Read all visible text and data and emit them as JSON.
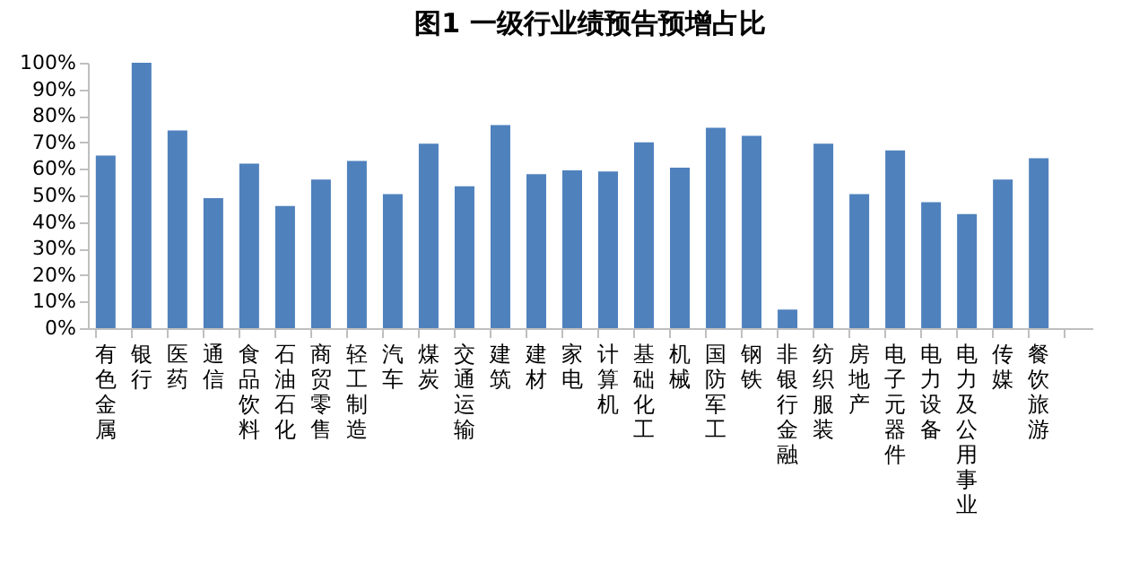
{
  "chart_data": {
    "type": "bar",
    "title": "图1 一级行业绩预告预增占比",
    "categories": [
      "有色金属",
      "银行",
      "医药",
      "通信",
      "食品饮料",
      "石油石化",
      "商贸零售",
      "轻工制造",
      "汽车",
      "煤炭",
      "交通运输",
      "建筑",
      "建材",
      "家电",
      "计算机",
      "基础化工",
      "机械",
      "国防军工",
      "钢铁",
      "非银行金融",
      "纺织服装",
      "房地产",
      "电子元器件",
      "电力设备",
      "电力及公用事业",
      "传媒",
      "餐饮旅游",
      null
    ],
    "values": [
      65,
      100,
      74.5,
      49,
      62,
      46,
      56,
      63,
      50.5,
      69.5,
      53.5,
      76.5,
      58,
      59.5,
      59,
      70,
      60.5,
      75.5,
      72.5,
      7,
      69.5,
      50.5,
      67,
      47.5,
      43,
      56,
      64,
      null
    ],
    "color": "#4f81bd",
    "ylim": [
      0,
      100
    ],
    "yticks": [
      {
        "value": 0,
        "label": "0%"
      },
      {
        "value": 10,
        "label": "10%"
      },
      {
        "value": 20,
        "label": "20%"
      },
      {
        "value": 30,
        "label": "30%"
      },
      {
        "value": 40,
        "label": "40%"
      },
      {
        "value": 50,
        "label": "50%"
      },
      {
        "value": 60,
        "label": "60%"
      },
      {
        "value": 70,
        "label": "70%"
      },
      {
        "value": 80,
        "label": "80%"
      },
      {
        "value": 90,
        "label": "90%"
      },
      {
        "value": 100,
        "label": "100%"
      }
    ]
  }
}
